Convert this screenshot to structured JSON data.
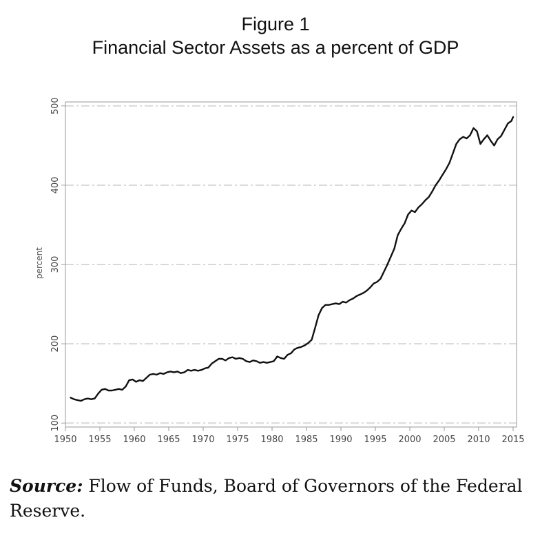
{
  "figure": {
    "label": "Figure 1",
    "title": "Financial Sector Assets as a percent of GDP"
  },
  "source": {
    "label": "Source:",
    "text": "Flow of Funds, Board of Governors of the Federal Reserve."
  },
  "chart_data": {
    "type": "line",
    "title": "Financial Sector Assets as a percent of GDP",
    "xlabel": "",
    "ylabel": "percent",
    "xlim": [
      1950,
      2015.5
    ],
    "ylim": [
      95,
      505
    ],
    "xticks": [
      1950,
      1955,
      1960,
      1965,
      1970,
      1975,
      1980,
      1985,
      1990,
      1995,
      2000,
      2005,
      2010,
      2015
    ],
    "yticks": [
      100,
      200,
      300,
      400,
      500
    ],
    "grid": "horizontal dash-dot",
    "legend": "none",
    "line_color": "#111111",
    "grid_color": "#d8d8d8",
    "series": [
      {
        "x": [
          1950.75,
          1951.25,
          1951.75,
          1952.25,
          1952.75,
          1953.25,
          1953.75,
          1954.25,
          1954.75,
          1955.25,
          1955.75,
          1956.25,
          1956.75,
          1957.25,
          1957.75,
          1958.25,
          1958.75,
          1959.25,
          1959.75,
          1960.25,
          1960.75,
          1961.25,
          1961.75,
          1962.25,
          1962.75,
          1963.25,
          1963.75,
          1964.25,
          1964.75,
          1965.25,
          1965.75,
          1966.25,
          1966.75,
          1967.25,
          1967.75,
          1968.25,
          1968.75,
          1969.25,
          1969.75,
          1970.25,
          1970.75,
          1971.25,
          1971.75,
          1972.25,
          1972.75,
          1973.25,
          1973.75,
          1974.25,
          1974.75,
          1975.25,
          1975.75,
          1976.25,
          1976.75,
          1977.25,
          1977.75,
          1978.25,
          1978.75,
          1979.25,
          1979.75,
          1980.25,
          1980.75,
          1981.25,
          1981.75,
          1982.25,
          1982.75,
          1983.25,
          1983.75,
          1984.25,
          1984.75,
          1985.25,
          1985.75,
          1986.25,
          1986.75,
          1987.25,
          1987.75,
          1988.25,
          1988.75,
          1989.25,
          1989.75,
          1990.25,
          1990.75,
          1991.25,
          1991.75,
          1992.25,
          1992.75,
          1993.25,
          1993.75,
          1994.25,
          1994.75,
          1995.25,
          1995.75,
          1996.25,
          1996.75,
          1997.25,
          1997.75,
          1998.25,
          1998.75,
          1999.25,
          1999.75,
          2000.25,
          2000.75,
          2001.25,
          2001.75,
          2002.25,
          2002.75,
          2003.25,
          2003.75,
          2004.25,
          2004.75,
          2005.25,
          2005.75,
          2006.25,
          2006.75,
          2007.25,
          2007.75,
          2008.25,
          2008.75,
          2009.25,
          2009.75,
          2010.25,
          2010.75,
          2011.25,
          2011.75,
          2012.25,
          2012.75,
          2013.25,
          2013.75,
          2014.25,
          2014.75,
          2015.0
        ],
        "y": [
          132,
          130,
          129,
          128,
          130,
          131,
          130,
          131,
          137,
          142,
          143,
          141,
          141,
          142,
          143,
          142,
          146,
          154,
          155,
          152,
          154,
          153,
          157,
          161,
          162,
          161,
          163,
          162,
          164,
          165,
          164,
          165,
          163,
          164,
          167,
          166,
          167,
          166,
          167,
          169,
          170,
          175,
          178,
          181,
          181,
          179,
          182,
          183,
          181,
          182,
          181,
          178,
          177,
          179,
          178,
          176,
          177,
          176,
          177,
          178,
          184,
          182,
          181,
          186,
          188,
          193,
          195,
          196,
          198,
          201,
          205,
          220,
          236,
          245,
          249,
          249,
          250,
          251,
          250,
          253,
          252,
          255,
          257,
          260,
          262,
          264,
          267,
          271,
          276,
          278,
          282,
          291,
          300,
          310,
          320,
          337,
          345,
          352,
          363,
          368,
          366,
          372,
          376,
          381,
          385,
          392,
          400,
          406,
          413,
          420,
          428,
          440,
          452,
          458,
          461,
          459,
          463,
          472,
          468,
          452,
          458,
          463,
          456,
          450,
          458,
          462,
          470,
          478,
          481,
          486
        ]
      }
    ]
  }
}
